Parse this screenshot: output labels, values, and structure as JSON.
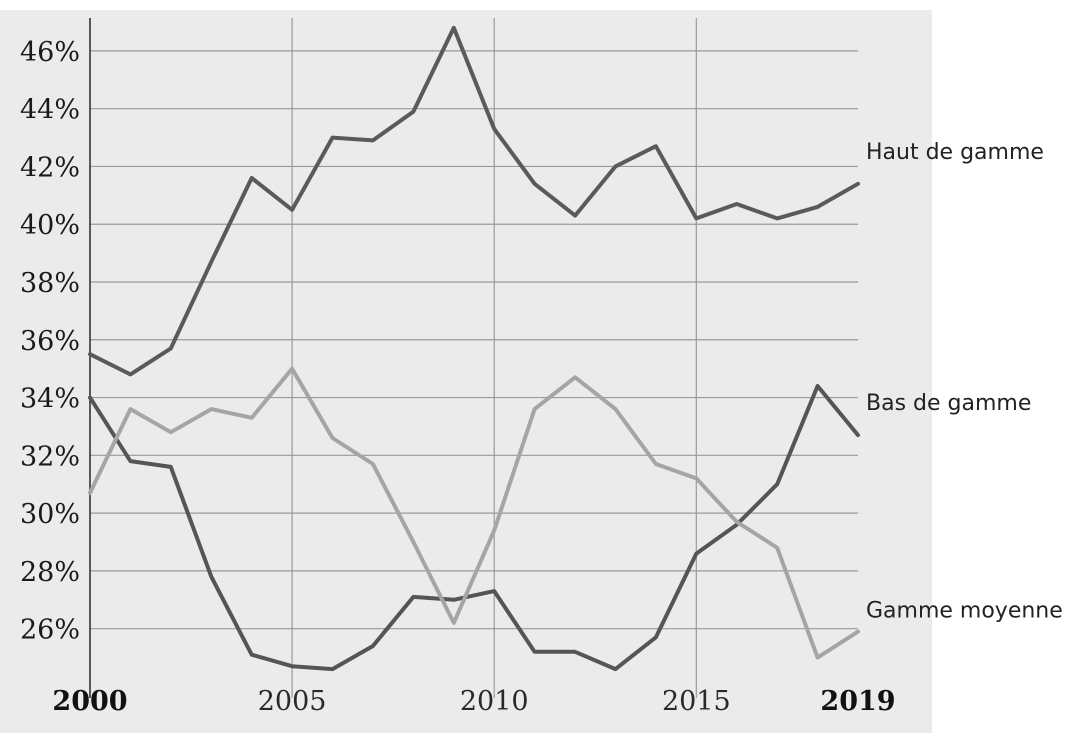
{
  "chart_data": {
    "type": "line",
    "title": "",
    "xlabel": "",
    "ylabel": "",
    "x": [
      2000,
      2001,
      2002,
      2003,
      2004,
      2005,
      2006,
      2007,
      2008,
      2009,
      2010,
      2011,
      2012,
      2013,
      2014,
      2015,
      2016,
      2017,
      2018,
      2019
    ],
    "xlim": [
      2000,
      2019
    ],
    "ylim": [
      24.5,
      47
    ],
    "x_ticks": [
      {
        "value": 2000,
        "label": "2000",
        "bold": true
      },
      {
        "value": 2005,
        "label": "2005",
        "bold": false
      },
      {
        "value": 2010,
        "label": "2010",
        "bold": false
      },
      {
        "value": 2015,
        "label": "2015",
        "bold": false
      },
      {
        "value": 2019,
        "label": "2019",
        "bold": true
      }
    ],
    "y_ticks": [
      {
        "value": 26,
        "label": "26%"
      },
      {
        "value": 28,
        "label": "28%"
      },
      {
        "value": 30,
        "label": "30%"
      },
      {
        "value": 32,
        "label": "32%"
      },
      {
        "value": 34,
        "label": "34%"
      },
      {
        "value": 36,
        "label": "36%"
      },
      {
        "value": 38,
        "label": "38%"
      },
      {
        "value": 40,
        "label": "40%"
      },
      {
        "value": 42,
        "label": "42%"
      },
      {
        "value": 44,
        "label": "44%"
      },
      {
        "value": 46,
        "label": "46%"
      }
    ],
    "grid": true,
    "legend": "direct labels at right end of lines",
    "background_color": "#ebebeb",
    "series": [
      {
        "name": "Haut de gamme",
        "color": "#5a5a5a",
        "values": [
          35.5,
          34.8,
          35.7,
          38.7,
          41.6,
          40.5,
          43.0,
          42.9,
          43.9,
          46.8,
          43.3,
          41.4,
          40.3,
          42.0,
          42.7,
          40.2,
          40.7,
          40.2,
          40.6,
          41.4
        ]
      },
      {
        "name": "Bas de gamme",
        "color": "#555555",
        "values": [
          34.0,
          31.8,
          31.6,
          27.8,
          25.1,
          24.7,
          24.6,
          25.4,
          27.1,
          27.0,
          27.3,
          25.2,
          25.2,
          24.6,
          25.7,
          28.6,
          29.6,
          31.0,
          34.4,
          32.7
        ]
      },
      {
        "name": "Gamme moyenne",
        "color": "#a5a5a5",
        "values": [
          30.7,
          33.6,
          32.8,
          33.6,
          33.3,
          35.0,
          32.6,
          31.7,
          29.0,
          26.2,
          29.4,
          33.6,
          34.7,
          33.6,
          31.7,
          31.2,
          29.7,
          28.8,
          25.0,
          25.9
        ]
      }
    ]
  }
}
